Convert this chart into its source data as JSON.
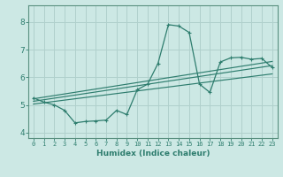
{
  "xlabel": "Humidex (Indice chaleur)",
  "bg_color": "#cce8e4",
  "grid_color": "#b0d0cc",
  "line_color": "#2e7d6e",
  "spine_color": "#5a9080",
  "xlim": [
    -0.5,
    23.5
  ],
  "ylim": [
    3.8,
    8.6
  ],
  "xticks": [
    0,
    1,
    2,
    3,
    4,
    5,
    6,
    7,
    8,
    9,
    10,
    11,
    12,
    13,
    14,
    15,
    16,
    17,
    18,
    19,
    20,
    21,
    22,
    23
  ],
  "yticks": [
    4,
    5,
    6,
    7,
    8
  ],
  "curve1_x": [
    0,
    1,
    2,
    3,
    4,
    5,
    6,
    7,
    8,
    9,
    10,
    11,
    12,
    13,
    14,
    15,
    16,
    17,
    18,
    19,
    20,
    21,
    22,
    23
  ],
  "curve1_y": [
    5.25,
    5.1,
    5.0,
    4.8,
    4.35,
    4.4,
    4.42,
    4.45,
    4.8,
    4.65,
    5.55,
    5.75,
    6.5,
    7.9,
    7.85,
    7.62,
    5.75,
    5.45,
    6.55,
    6.7,
    6.72,
    6.65,
    6.68,
    6.35
  ],
  "line1_x": [
    0,
    23
  ],
  "line1_y": [
    5.13,
    6.42
  ],
  "line2_x": [
    0,
    23
  ],
  "line2_y": [
    5.22,
    6.57
  ],
  "line3_x": [
    0,
    23
  ],
  "line3_y": [
    5.03,
    6.12
  ]
}
